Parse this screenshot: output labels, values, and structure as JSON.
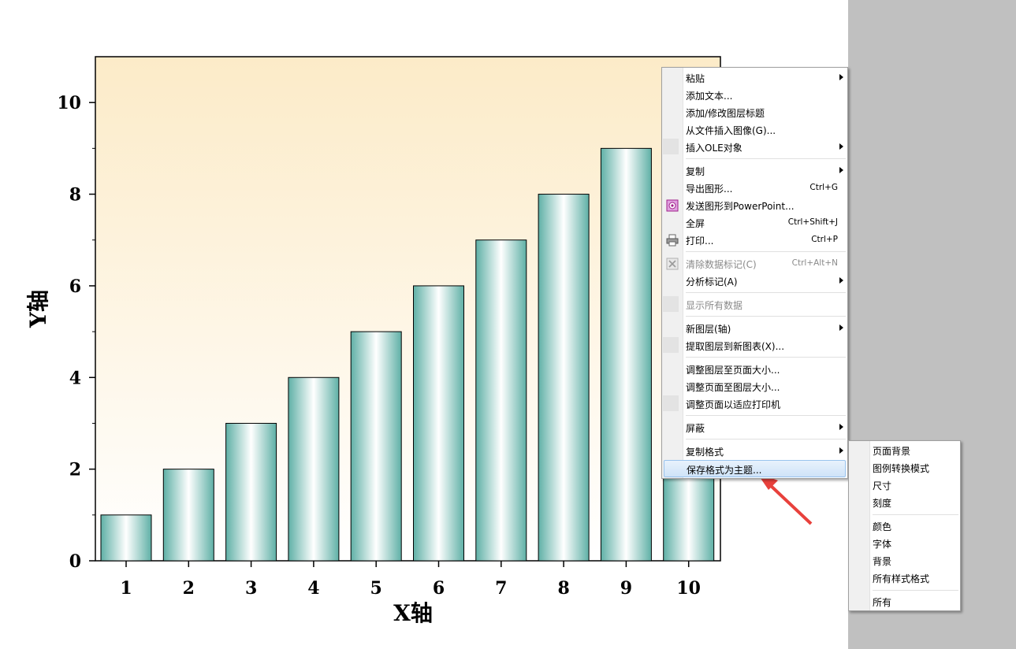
{
  "chart_data": {
    "type": "bar",
    "categories": [
      "1",
      "2",
      "3",
      "4",
      "5",
      "6",
      "7",
      "8",
      "9",
      "10"
    ],
    "values": [
      1,
      2,
      3,
      4,
      5,
      6,
      7,
      8,
      9,
      10
    ],
    "xlabel": "X轴",
    "ylabel": "Y轴",
    "ylim": [
      0,
      11
    ],
    "yticks": [
      0,
      2,
      4,
      6,
      8,
      10
    ],
    "grid": false,
    "colors": {
      "bar_edge": "#5fb0a6",
      "bar_center": "#ffffff",
      "bg_top": "#fcebc8",
      "bg_bottom": "#ffffff"
    }
  },
  "context_menu": {
    "items": [
      {
        "label": "粘贴",
        "submenu": true
      },
      {
        "label": "添加文本..."
      },
      {
        "label": "添加/修改图层标题"
      },
      {
        "label": "从文件插入图像(G)..."
      },
      {
        "label": "插入OLE对象",
        "submenu": true
      },
      {
        "label": "复制",
        "submenu": true
      },
      {
        "label": "导出图形...",
        "shortcut": "Ctrl+G"
      },
      {
        "label": "发送图形到PowerPoint...",
        "icon": "powerpoint-icon"
      },
      {
        "label": "全屏",
        "shortcut": "Ctrl+Shift+J"
      },
      {
        "label": "打印...",
        "shortcut": "Ctrl+P",
        "icon": "printer-icon"
      },
      {
        "label": "清除数据标记(C)",
        "shortcut": "Ctrl+Alt+N",
        "disabled": true,
        "icon": "clear-marker-icon"
      },
      {
        "label": "分析标记(A)",
        "submenu": true
      },
      {
        "label": "显示所有数据",
        "disabled": true
      },
      {
        "label": "新图层(轴)",
        "submenu": true
      },
      {
        "label": "提取图层到新图表(X)..."
      },
      {
        "label": "调整图层至页面大小..."
      },
      {
        "label": "调整页面至图层大小..."
      },
      {
        "label": "调整页面以适应打印机"
      },
      {
        "label": "屏蔽",
        "submenu": true
      },
      {
        "label": "复制格式",
        "submenu": true
      },
      {
        "label": "保存格式为主题...",
        "highlighted": true
      }
    ]
  },
  "submenu": {
    "items": [
      {
        "label": "页面背景"
      },
      {
        "label": "图例转换模式"
      },
      {
        "label": "尺寸"
      },
      {
        "label": "刻度"
      },
      {
        "label": "颜色"
      },
      {
        "label": "字体"
      },
      {
        "label": "背景"
      },
      {
        "label": "所有样式格式"
      },
      {
        "label": "所有"
      }
    ]
  },
  "annotation": {
    "color": "#e8413c"
  }
}
